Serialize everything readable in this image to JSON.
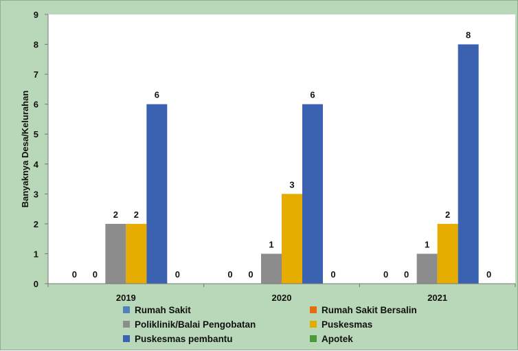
{
  "chart_data": {
    "type": "bar",
    "categories": [
      "2019",
      "2020",
      "2021"
    ],
    "ylabel": "Banyaknya Desa/Kelurahan",
    "ylim": [
      0,
      9
    ],
    "yticks": [
      "0",
      "1",
      "2",
      "3",
      "4",
      "5",
      "6",
      "7",
      "8",
      "9"
    ],
    "grid": false,
    "legend_position": "bottom",
    "series": [
      {
        "name": "Rumah Sakit",
        "color": "#4f81bd",
        "values": [
          0,
          0,
          0
        ]
      },
      {
        "name": "Rumah Sakit Bersalin",
        "color": "#e46c0a",
        "values": [
          0,
          0,
          0
        ]
      },
      {
        "name": "Poliklinik/Balai Pengobatan",
        "color": "#8c8c8c",
        "values": [
          2,
          1,
          1
        ]
      },
      {
        "name": "Puskesmas",
        "color": "#e6ac00",
        "values": [
          2,
          3,
          2
        ]
      },
      {
        "name": "Puskesmas pembantu",
        "color": "#3a62b0",
        "values": [
          6,
          6,
          8
        ]
      },
      {
        "name": "Apotek",
        "color": "#4a9a3c",
        "values": [
          0,
          0,
          0
        ]
      }
    ]
  }
}
